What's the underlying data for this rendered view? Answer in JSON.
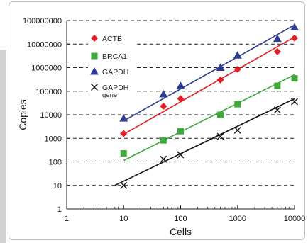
{
  "chart_data": {
    "type": "scatter",
    "title": "",
    "xlabel": "Cells",
    "ylabel": "Copies",
    "x_scale": "log",
    "y_scale": "log",
    "xlim": [
      1,
      10000
    ],
    "ylim": [
      1,
      100000000
    ],
    "x_ticks": [
      "1",
      "10",
      "100",
      "1000",
      "10000"
    ],
    "y_ticks": [
      "1",
      "10",
      "100",
      "1000",
      "10000",
      "100000",
      "1000000",
      "10000000",
      "100000000"
    ],
    "grid": "horizontal dashed",
    "legend_position": "top-left",
    "series": [
      {
        "name": "ACTB",
        "marker": "diamond",
        "color": "#e31e24",
        "x": [
          10,
          50,
          100,
          500,
          1000,
          5000,
          10000
        ],
        "y": [
          1600,
          23000,
          48000,
          300000,
          850000,
          4800000,
          18000000
        ],
        "fit_line": {
          "x": [
            10,
            10000
          ],
          "y": [
            1500,
            20000000
          ]
        }
      },
      {
        "name": "BRCA1",
        "marker": "square",
        "color": "#3daa3a",
        "x": [
          10,
          50,
          100,
          500,
          1000,
          5000,
          10000
        ],
        "y": [
          230,
          820,
          2000,
          10000,
          28000,
          170000,
          350000
        ],
        "fit_line": {
          "x": [
            10,
            10000
          ],
          "y": [
            115,
            500000
          ]
        }
      },
      {
        "name": "GAPDH",
        "marker": "triangle",
        "color": "#2e3d92",
        "x": [
          10,
          50,
          100,
          500,
          1000,
          5000,
          10000
        ],
        "y": [
          7000,
          75000,
          170000,
          1000000,
          3300000,
          17000000,
          52000000
        ],
        "fit_line": {
          "x": [
            10,
            10000
          ],
          "y": [
            5500,
            65000000
          ]
        }
      },
      {
        "name": "GAPDH",
        "sublabel": "gene",
        "marker": "x",
        "color": "#111111",
        "x": [
          10,
          50,
          100,
          500,
          1000,
          5000,
          10000
        ],
        "y": [
          10,
          130,
          200,
          1200,
          2200,
          16000,
          36000
        ],
        "fit_line": {
          "x": [
            7,
            10000
          ],
          "y": [
            10,
            48000
          ]
        }
      }
    ]
  }
}
